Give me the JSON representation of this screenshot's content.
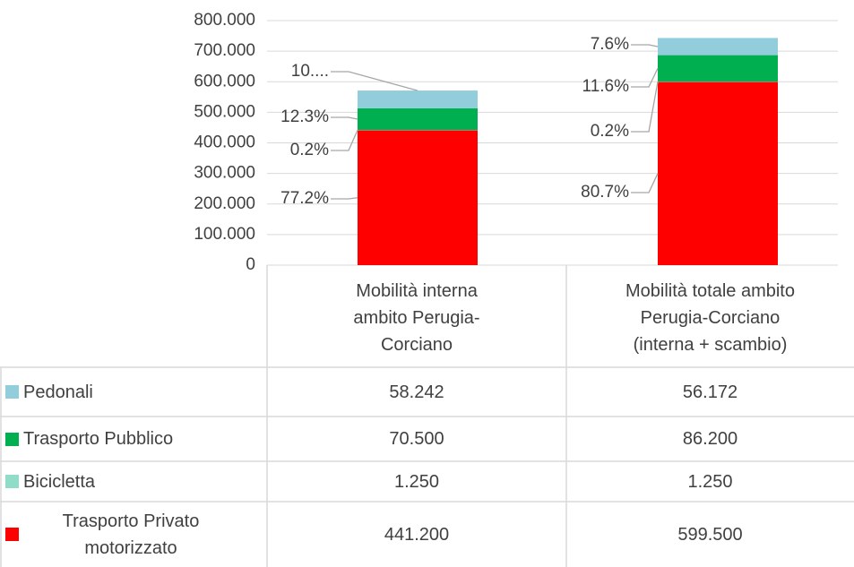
{
  "chart_data": {
    "type": "stacked_bar",
    "categories": [
      [
        "Mobilità interna",
        "ambito Perugia-",
        "Corciano"
      ],
      [
        "Mobilità totale ambito",
        "Perugia-Corciano",
        "(interna + scambio)"
      ]
    ],
    "series": [
      {
        "name": "Pedonali",
        "color": "#92cddc",
        "values": [
          58242,
          56172
        ],
        "value_labels": [
          "58.242",
          "56.172"
        ],
        "data_labels": [
          "10....",
          "7.6%"
        ]
      },
      {
        "name": "Trasporto Pubblico",
        "color": "#00b050",
        "values": [
          70500,
          86200
        ],
        "value_labels": [
          "70.500",
          "86.200"
        ],
        "data_labels": [
          "12.3%",
          "11.6%"
        ]
      },
      {
        "name": "Bicicletta",
        "color": "#8fdcc8",
        "values": [
          1250,
          1250
        ],
        "value_labels": [
          "1.250",
          "1.250"
        ],
        "data_labels": [
          "0.2%",
          "0.2%"
        ]
      },
      {
        "name": "Trasporto Privato motorizzato",
        "color": "#ff0000",
        "values": [
          441200,
          599500
        ],
        "value_labels": [
          "441.200",
          "599.500"
        ],
        "data_labels": [
          "77.2%",
          "80.7%"
        ]
      }
    ],
    "ylim": [
      0,
      800000
    ],
    "yticks": [
      0,
      {
        "value": 100000,
        "label": "100.000"
      },
      {
        "value": 200000,
        "label": "200.000"
      },
      {
        "value": 300000,
        "label": "300.000"
      },
      {
        "value": 400000,
        "label": "400.000"
      },
      {
        "value": 500000,
        "label": "500.000"
      },
      {
        "value": 600000,
        "label": "600.000"
      },
      {
        "value": 700000,
        "label": "700.000"
      },
      {
        "value": 800000,
        "label": "800.000"
      }
    ],
    "grid": true
  }
}
